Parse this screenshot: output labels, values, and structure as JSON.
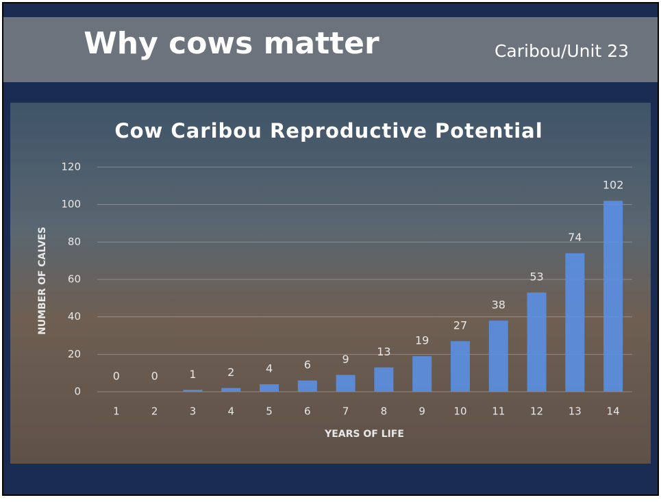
{
  "slide": {
    "title": "Why cows matter",
    "subtitle": "Caribou/Unit 23"
  },
  "chart_data": {
    "type": "bar",
    "title": "Cow Caribou Reproductive Potential",
    "x_label": "YEARS OF LIFE",
    "y_label": "NUMBER OF CALVES",
    "categories": [
      "1",
      "2",
      "3",
      "4",
      "5",
      "6",
      "7",
      "8",
      "9",
      "10",
      "11",
      "12",
      "13",
      "14"
    ],
    "values": [
      0,
      0,
      1,
      2,
      4,
      6,
      9,
      13,
      19,
      27,
      38,
      53,
      74,
      102
    ],
    "color": "#5b8fe3",
    "ylim": [
      0,
      120
    ],
    "yticks": [
      0,
      20,
      40,
      60,
      80,
      100,
      120
    ],
    "grid": true
  }
}
